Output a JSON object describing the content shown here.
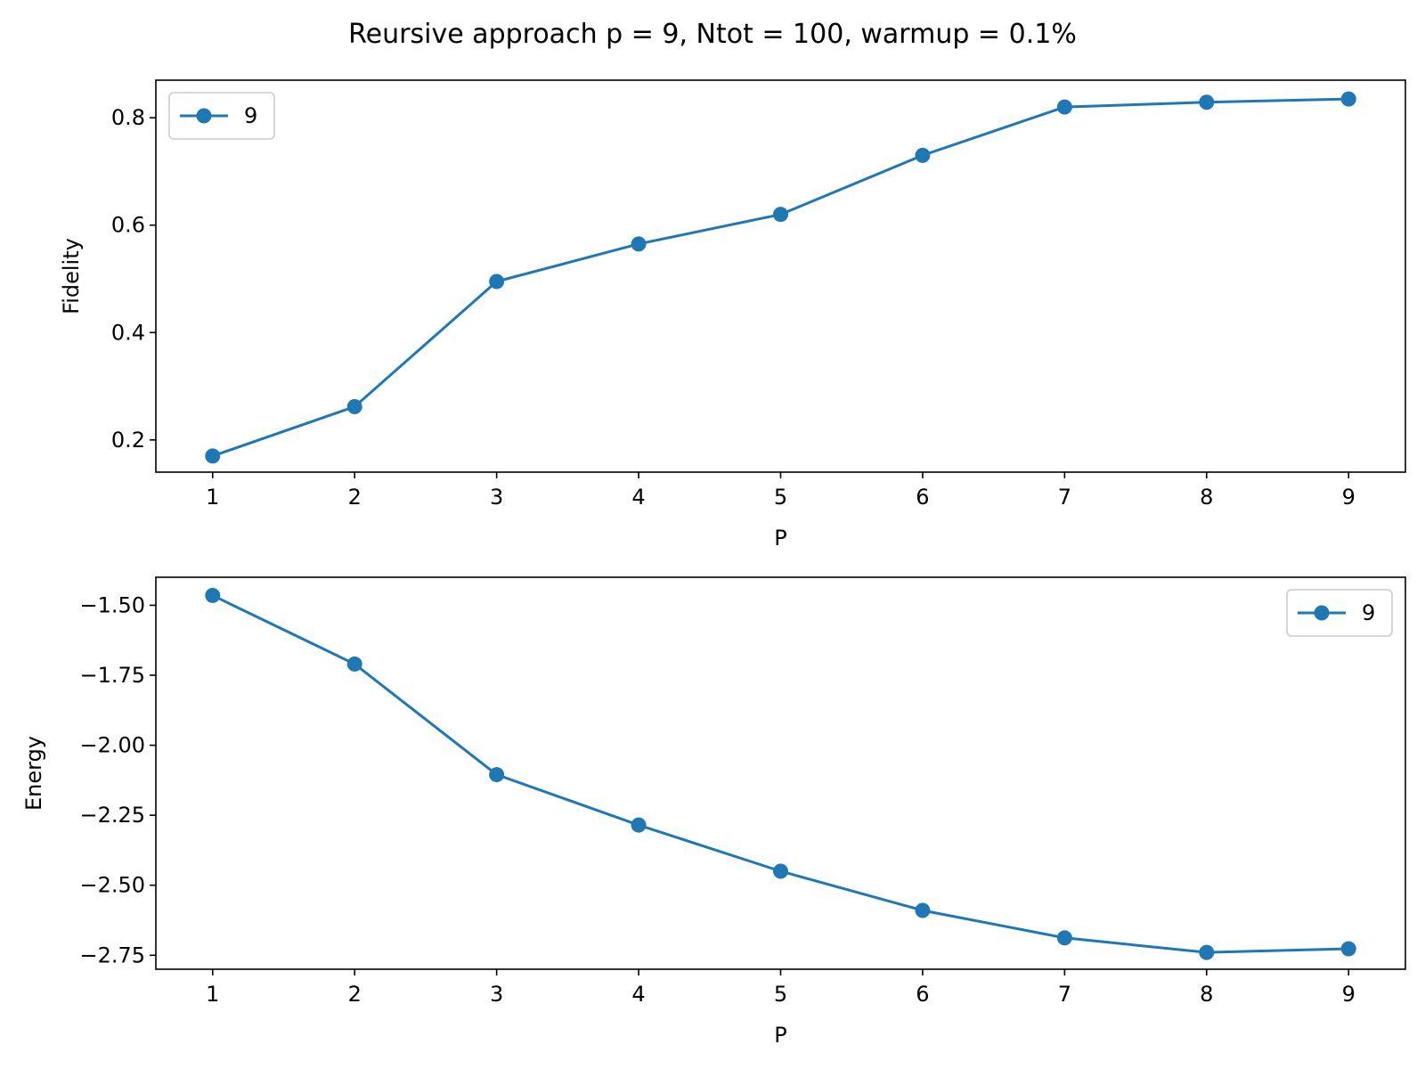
{
  "title": "Reursive approach p = 9, Ntot = 100, warmup = 0.1%",
  "colors": {
    "series": "#1f77b4",
    "axes": "#000000",
    "background": "#ffffff"
  },
  "chart_data": [
    {
      "type": "line",
      "name": "fidelity",
      "title": "",
      "xlabel": "P",
      "ylabel": "Fidelity",
      "x": [
        1,
        2,
        3,
        4,
        5,
        6,
        7,
        8,
        9
      ],
      "xlim": [
        0.6,
        9.4
      ],
      "ylim": [
        0.14,
        0.87
      ],
      "xticks": [
        "1",
        "2",
        "3",
        "4",
        "5",
        "6",
        "7",
        "8",
        "9"
      ],
      "yticks": [
        "0.2",
        "0.4",
        "0.6",
        "0.8"
      ],
      "ytick_values": [
        0.2,
        0.4,
        0.6,
        0.8
      ],
      "grid": false,
      "legend": "upper left",
      "series": [
        {
          "name": "9",
          "marker": "circle",
          "values": [
            0.17,
            0.262,
            0.495,
            0.565,
            0.62,
            0.73,
            0.82,
            0.829,
            0.835
          ]
        }
      ]
    },
    {
      "type": "line",
      "name": "energy",
      "title": "",
      "xlabel": "P",
      "ylabel": "Energy",
      "x": [
        1,
        2,
        3,
        4,
        5,
        6,
        7,
        8,
        9
      ],
      "xlim": [
        0.6,
        9.4
      ],
      "ylim": [
        -2.8,
        -1.4
      ],
      "xticks": [
        "1",
        "2",
        "3",
        "4",
        "5",
        "6",
        "7",
        "8",
        "9"
      ],
      "yticks": [
        "−1.50",
        "−1.75",
        "−2.00",
        "−2.25",
        "−2.50",
        "−2.75"
      ],
      "ytick_values": [
        -1.5,
        -1.75,
        -2.0,
        -2.25,
        -2.5,
        -2.75
      ],
      "grid": false,
      "legend": "upper right",
      "series": [
        {
          "name": "9",
          "marker": "circle",
          "values": [
            -1.465,
            -1.71,
            -2.105,
            -2.285,
            -2.45,
            -2.59,
            -2.688,
            -2.74,
            -2.727
          ]
        }
      ]
    }
  ]
}
